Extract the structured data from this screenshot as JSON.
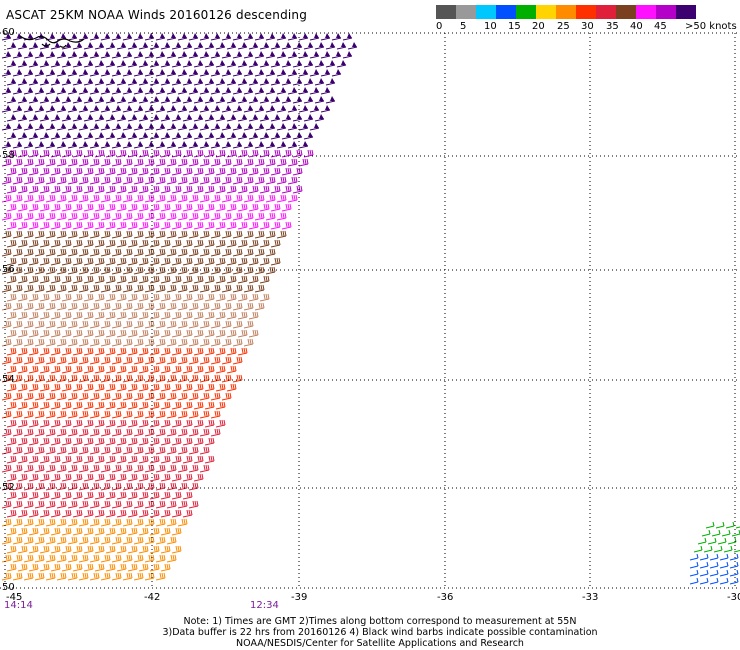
{
  "title": "ASCAT 25KM NOAA Winds 20160126 descending",
  "colorbar": {
    "colors": [
      "#555555",
      "#999999",
      "#00c8ff",
      "#0050ff",
      "#00b000",
      "#ffd400",
      "#ff8c00",
      "#ff3000",
      "#e0203a",
      "#7a4020",
      "#ff10ff",
      "#b400c8",
      "#3c0070"
    ],
    "labels": [
      "0",
      "5",
      "10",
      "15",
      "20",
      "25",
      "30",
      "35",
      "40",
      "45",
      ">50 knots"
    ]
  },
  "axes": {
    "lon_labels": [
      "-45",
      "-42",
      "-39",
      "-36",
      "-33",
      "-30"
    ],
    "lat_labels": [
      "60",
      "58",
      "56",
      "54",
      "52",
      "50"
    ]
  },
  "times": {
    "left": "14:14",
    "mid": "12:34"
  },
  "notes": {
    "line1": "Note: 1) Times are GMT 2)Times along bottom correspond to measurement at 55N",
    "line2": "3)Data buffer is 22 hrs from 20160126 4) Black wind barbs indicate possible contamination",
    "line3": "NOAA/NESDIS/Center for Satellite Applications and Research"
  }
}
